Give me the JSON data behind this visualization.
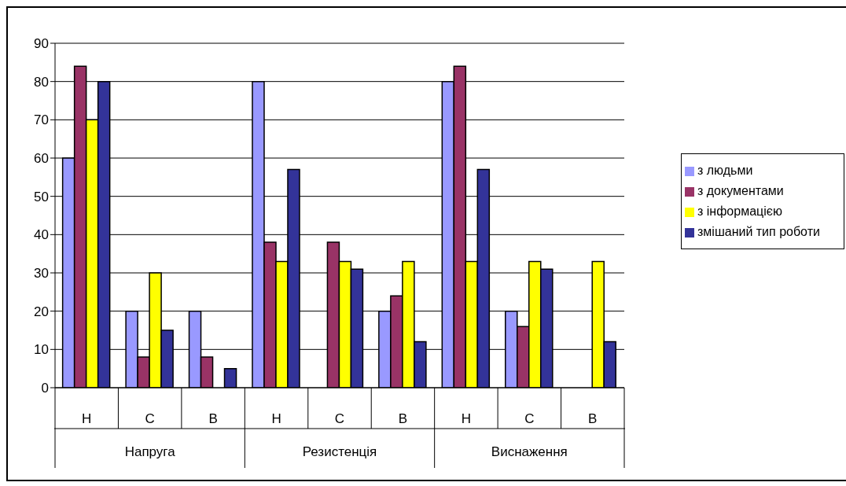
{
  "chart_data": {
    "type": "bar",
    "categories": [
      "Н",
      "С",
      "В",
      "Н",
      "С",
      "В",
      "Н",
      "С",
      "В"
    ],
    "annotations": [
      "Напруга",
      "Резистенція",
      "Виснаження"
    ],
    "series": [
      {
        "name": "з людьми",
        "color": "#9999ff",
        "values": [
          60,
          20,
          20,
          80,
          0,
          20,
          80,
          20,
          0
        ]
      },
      {
        "name": "з документами",
        "color": "#993366",
        "values": [
          84,
          8,
          8,
          38,
          38,
          24,
          84,
          16,
          0
        ]
      },
      {
        "name": "з інформацією",
        "color": "#ffff00",
        "values": [
          70,
          30,
          0,
          33,
          33,
          33,
          33,
          33,
          33
        ]
      },
      {
        "name": "змішаний тип роботи",
        "color": "#333399",
        "values": [
          80,
          15,
          5,
          57,
          31,
          12,
          57,
          31,
          12
        ]
      }
    ],
    "ylim": [
      0,
      90
    ],
    "yticks": [
      0,
      10,
      20,
      30,
      40,
      50,
      60,
      70,
      80,
      90
    ],
    "grid": "y",
    "legend": "right"
  }
}
